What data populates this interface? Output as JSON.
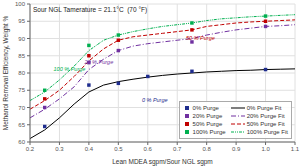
{
  "chart_data": {
    "type": "line",
    "title": "Sour NGL Tamerature = 21.1°C  (70 °F)",
    "xlabel": "Lean MDEA sgpm/Sour NGL sgpm",
    "ylabel": "Methanol Removal Efficiency, Weight %",
    "xlim": [
      0.2,
      1.1
    ],
    "ylim": [
      60,
      100
    ],
    "xticks": [
      0.2,
      0.3,
      0.4,
      0.5,
      0.6,
      0.7,
      0.8,
      0.9,
      {
        "value": 1.0,
        "label": "1.0"
      },
      1.1
    ],
    "yticks": [
      60,
      65,
      70,
      75,
      80,
      85,
      90,
      95,
      100
    ],
    "grid": true,
    "legend": "lower right",
    "series": [
      {
        "name": "0% Purge",
        "type": "scatter",
        "marker": "square",
        "color": "#1f2d8e",
        "x": [
          0.25,
          0.4,
          0.5,
          0.6,
          0.75,
          1.0
        ],
        "values": [
          64.5,
          76.5,
          77.0,
          79.0,
          80.5,
          81.0
        ]
      },
      {
        "name": "20% Purge",
        "type": "scatter",
        "marker": "square",
        "color": "#7030a0",
        "x": [
          0.25,
          0.4,
          0.5,
          0.75,
          1.0
        ],
        "values": [
          70.0,
          83.0,
          86.5,
          89.0,
          93.5
        ]
      },
      {
        "name": "50% Purge",
        "type": "scatter",
        "marker": "square",
        "color": "#c00000",
        "x": [
          0.25,
          0.4,
          0.5,
          0.75,
          1.0
        ],
        "values": [
          72.5,
          85.0,
          89.5,
          92.5,
          95.0
        ]
      },
      {
        "name": "100% Purge",
        "type": "scatter",
        "marker": "square",
        "color": "#00b050",
        "x": [
          0.25,
          0.4,
          0.5,
          0.75,
          1.0
        ],
        "values": [
          75.0,
          88.0,
          91.0,
          94.5,
          96.5
        ]
      },
      {
        "name": "0% Purge Fit",
        "type": "line",
        "line_style": "solid",
        "color": "#000000",
        "x": [
          0.2,
          0.25,
          0.3,
          0.35,
          0.4,
          0.45,
          0.5,
          0.55,
          0.6,
          0.65,
          0.7,
          0.75,
          0.8,
          0.85,
          0.9,
          0.95,
          1.0,
          1.05,
          1.1
        ],
        "values": [
          61.0,
          63.5,
          67.0,
          71.0,
          74.5,
          76.5,
          77.5,
          78.2,
          78.8,
          79.3,
          79.7,
          80.0,
          80.3,
          80.5,
          80.7,
          80.8,
          81.0,
          81.1,
          81.2
        ]
      },
      {
        "name": "20% Purge Fit",
        "type": "line",
        "line_style": "dashdot",
        "color": "#7030a0",
        "x": [
          0.2,
          0.25,
          0.3,
          0.35,
          0.4,
          0.45,
          0.5,
          0.55,
          0.6,
          0.65,
          0.7,
          0.75,
          0.8,
          0.85,
          0.9,
          0.95,
          1.0,
          1.05,
          1.1
        ],
        "values": [
          67.0,
          69.5,
          72.5,
          76.0,
          81.0,
          84.0,
          86.5,
          87.8,
          88.5,
          89.0,
          89.5,
          90.0,
          91.0,
          91.8,
          92.5,
          93.0,
          93.5,
          93.7,
          94.0
        ]
      },
      {
        "name": "50% Purge Fit",
        "type": "line",
        "line_style": "dashed",
        "color": "#c00000",
        "x": [
          0.2,
          0.25,
          0.3,
          0.35,
          0.4,
          0.45,
          0.5,
          0.55,
          0.6,
          0.65,
          0.7,
          0.75,
          0.8,
          0.85,
          0.9,
          0.95,
          1.0,
          1.05,
          1.1
        ],
        "values": [
          69.5,
          72.0,
          75.0,
          79.0,
          83.5,
          87.0,
          89.5,
          90.5,
          91.0,
          91.5,
          92.0,
          92.5,
          93.5,
          94.0,
          94.5,
          94.8,
          95.0,
          95.2,
          95.4
        ]
      },
      {
        "name": "100% Purge Fit",
        "type": "line",
        "line_style": "dashdotdot",
        "color": "#00b050",
        "x": [
          0.2,
          0.25,
          0.3,
          0.35,
          0.4,
          0.45,
          0.5,
          0.55,
          0.6,
          0.65,
          0.7,
          0.75,
          0.8,
          0.85,
          0.9,
          0.95,
          1.0,
          1.05,
          1.1
        ],
        "values": [
          72.0,
          74.5,
          78.0,
          82.0,
          86.5,
          89.5,
          91.0,
          92.0,
          92.8,
          93.5,
          94.0,
          94.5,
          95.2,
          95.7,
          96.0,
          96.3,
          96.5,
          96.7,
          96.9
        ]
      }
    ],
    "annotations": [
      {
        "text": "0 % Purge",
        "x": 0.58,
        "y": 71.5,
        "color": "#1f2d8e"
      },
      {
        "text": "20 % Purge",
        "x": 0.385,
        "y": 82.5,
        "color": "#7030a0"
      },
      {
        "text": "50 % Purge",
        "x": 0.73,
        "y": 89.5,
        "color": "#c00000"
      },
      {
        "text": "100 % Purge",
        "x": 0.28,
        "y": 80.5,
        "color": "#00b050"
      }
    ]
  }
}
